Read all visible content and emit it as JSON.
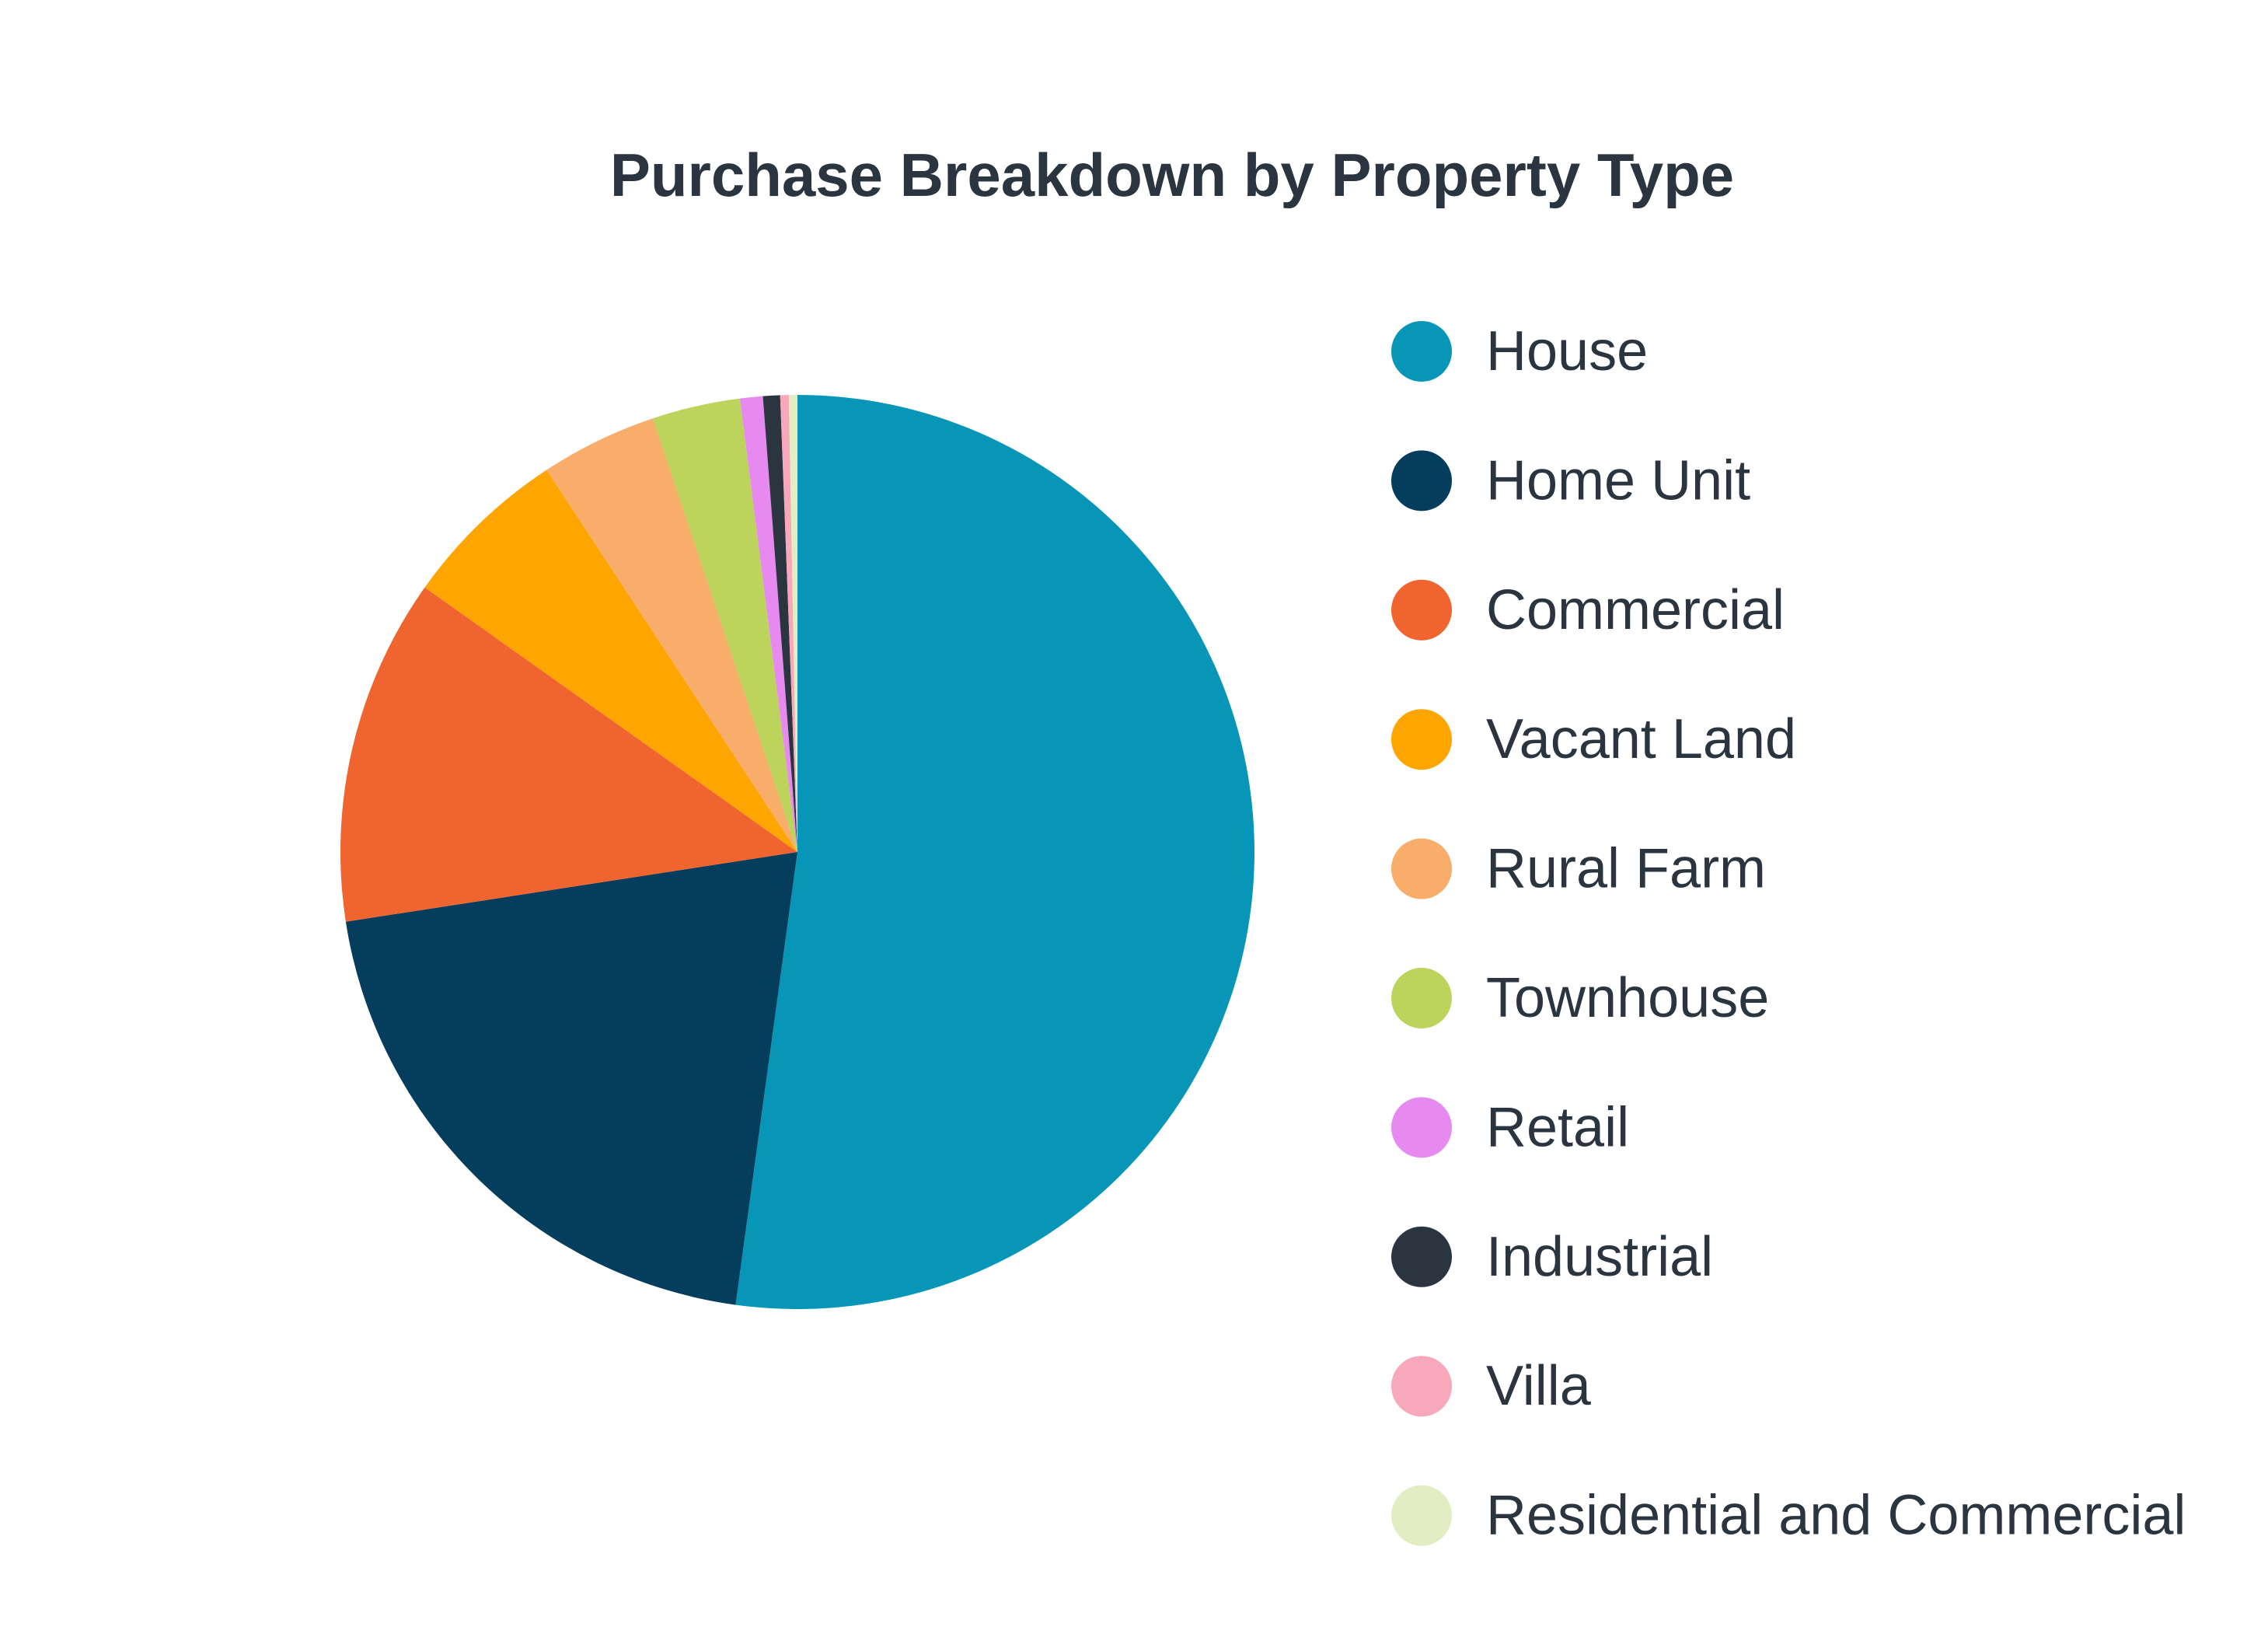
{
  "chart_data": {
    "type": "pie",
    "title": "Purchase Breakdown by Property Type",
    "legend_position": "right",
    "slices": [
      {
        "label": "House",
        "value": 51.9,
        "color": "#0796b8"
      },
      {
        "label": "Home Unit",
        "value": 20.3,
        "color": "#053d5c"
      },
      {
        "label": "Commercial",
        "value": 12.2,
        "color": "#f06430"
      },
      {
        "label": "Vacant Land",
        "value": 5.9,
        "color": "#ffa502"
      },
      {
        "label": "Rural Farm",
        "value": 4.1,
        "color": "#f9ad6b"
      },
      {
        "label": "Townhouse",
        "value": 3.1,
        "color": "#bcd35c"
      },
      {
        "label": "Retail",
        "value": 0.8,
        "color": "#e68aef"
      },
      {
        "label": "Industrial",
        "value": 0.6,
        "color": "#2a3540"
      },
      {
        "label": "Villa",
        "value": 0.3,
        "color": "#f7a8ba"
      },
      {
        "label": "Residential and Commercial",
        "value": 0.3,
        "color": "#e3edc4"
      }
    ]
  }
}
